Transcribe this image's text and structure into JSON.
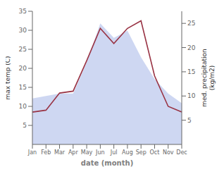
{
  "chart_data": {
    "type": "line",
    "categories": [
      "Jan",
      "Feb",
      "Mar",
      "Apr",
      "May",
      "Jun",
      "Jul",
      "Aug",
      "Sep",
      "Oct",
      "Nov",
      "Dec"
    ],
    "series": [
      {
        "type": "area",
        "axis": "y2",
        "color": "#c5d0f0",
        "values": [
          9.5,
          10.0,
          10.5,
          10.5,
          17.0,
          25.0,
          22.0,
          23.5,
          18.0,
          13.5,
          10.5,
          8.5
        ]
      },
      {
        "type": "line",
        "color": "#993344",
        "values": [
          8.5,
          9.0,
          13.5,
          14.0,
          22.0,
          30.5,
          26.5,
          30.5,
          32.5,
          18.0,
          10.0,
          8.5
        ]
      }
    ],
    "xlabel": "date (month)",
    "ylabel": "max temp (C)",
    "y2label": "med. precipitation\n(kg/m2)",
    "ylim": [
      0,
      35
    ],
    "yticks": [
      5,
      10,
      15,
      20,
      25,
      30,
      35
    ],
    "y2lim": [
      0,
      27.5
    ],
    "y2ticks": [
      5,
      10,
      15,
      20,
      25
    ],
    "grid": false
  }
}
